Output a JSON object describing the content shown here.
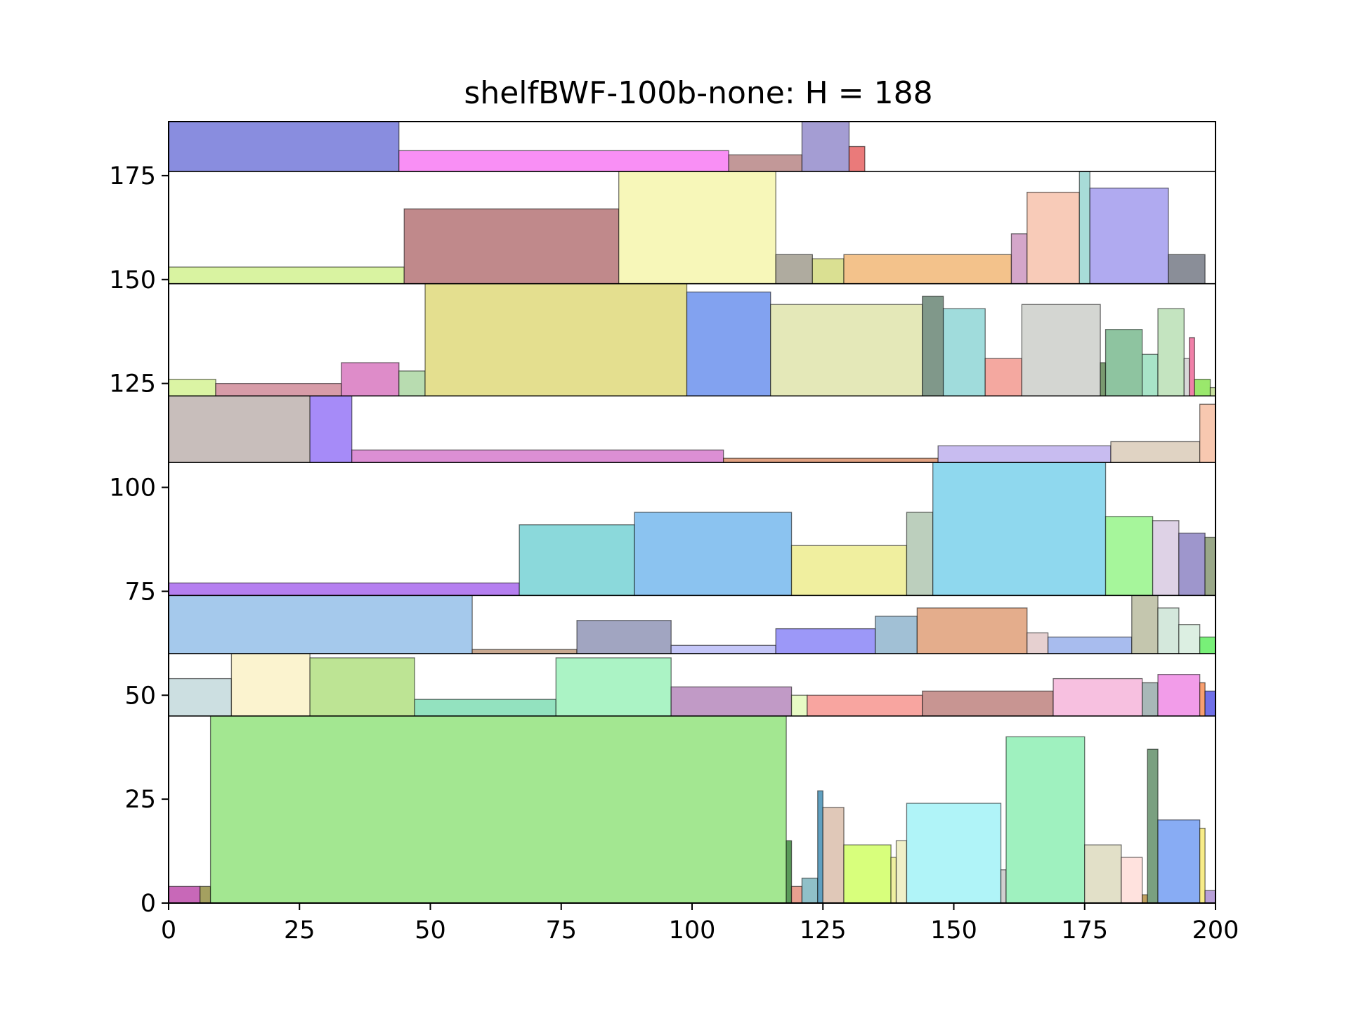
{
  "chart_data": {
    "type": "rectangle-packing",
    "title": "shelfBWF-100b-none: H = 188",
    "xlabel": "",
    "ylabel": "",
    "xlim": [
      0,
      200
    ],
    "ylim": [
      0,
      188
    ],
    "xticks": [
      0,
      25,
      50,
      75,
      100,
      125,
      150,
      175,
      200
    ],
    "yticks": [
      0,
      25,
      50,
      75,
      100,
      125,
      150,
      175
    ],
    "grid": false,
    "shelf_lines_y": [
      45,
      60,
      74,
      106,
      122,
      149,
      176
    ],
    "rectangles": [
      {
        "x": 0,
        "y": 0,
        "w": 6,
        "h": 4,
        "color": "#c868b8"
      },
      {
        "x": 6,
        "y": 0,
        "w": 2,
        "h": 4,
        "color": "#a4a060"
      },
      {
        "x": 8,
        "y": 0,
        "w": 110,
        "h": 45,
        "color": "#a3e791"
      },
      {
        "x": 118,
        "y": 0,
        "w": 1,
        "h": 15,
        "color": "#5a9a5a"
      },
      {
        "x": 119,
        "y": 0,
        "w": 2,
        "h": 4,
        "color": "#e8a090"
      },
      {
        "x": 121,
        "y": 0,
        "w": 3,
        "h": 6,
        "color": "#90c0c8"
      },
      {
        "x": 124,
        "y": 0,
        "w": 1,
        "h": 27,
        "color": "#60a0c0"
      },
      {
        "x": 125,
        "y": 0,
        "w": 4,
        "h": 23,
        "color": "#e0c8b8"
      },
      {
        "x": 129,
        "y": 0,
        "w": 9,
        "h": 14,
        "color": "#d8ff7c"
      },
      {
        "x": 138,
        "y": 0,
        "w": 1,
        "h": 11,
        "color": "#f0f0a0"
      },
      {
        "x": 139,
        "y": 0,
        "w": 2,
        "h": 15,
        "color": "#f0f0c8"
      },
      {
        "x": 141,
        "y": 0,
        "w": 18,
        "h": 24,
        "color": "#b0f4f8"
      },
      {
        "x": 159,
        "y": 0,
        "w": 1,
        "h": 8,
        "color": "#d0d0d0"
      },
      {
        "x": 160,
        "y": 0,
        "w": 15,
        "h": 40,
        "color": "#9ff1bf"
      },
      {
        "x": 175,
        "y": 0,
        "w": 7,
        "h": 14,
        "color": "#e2e0c8"
      },
      {
        "x": 182,
        "y": 0,
        "w": 4,
        "h": 11,
        "color": "#ffe2de"
      },
      {
        "x": 186,
        "y": 0,
        "w": 1,
        "h": 2,
        "color": "#c0a060"
      },
      {
        "x": 187,
        "y": 0,
        "w": 2,
        "h": 37,
        "color": "#7aa080"
      },
      {
        "x": 189,
        "y": 0,
        "w": 8,
        "h": 20,
        "color": "#88acf4"
      },
      {
        "x": 197,
        "y": 0,
        "w": 1,
        "h": 18,
        "color": "#f8ec88"
      },
      {
        "x": 198,
        "y": 0,
        "w": 2,
        "h": 3,
        "color": "#b8a0d8"
      },
      {
        "x": 0,
        "y": 45,
        "w": 12,
        "h": 9,
        "color": "#ccdfe1"
      },
      {
        "x": 12,
        "y": 45,
        "w": 15,
        "h": 15,
        "color": "#fbf3cf"
      },
      {
        "x": 27,
        "y": 45,
        "w": 20,
        "h": 14,
        "color": "#bde494"
      },
      {
        "x": 47,
        "y": 45,
        "w": 27,
        "h": 4,
        "color": "#93e2bf"
      },
      {
        "x": 74,
        "y": 45,
        "w": 22,
        "h": 14,
        "color": "#abf3c5"
      },
      {
        "x": 96,
        "y": 45,
        "w": 23,
        "h": 7,
        "color": "#c19ac6"
      },
      {
        "x": 119,
        "y": 45,
        "w": 3,
        "h": 5,
        "color": "#e8fbc5"
      },
      {
        "x": 122,
        "y": 45,
        "w": 22,
        "h": 5,
        "color": "#f8a5a0"
      },
      {
        "x": 144,
        "y": 45,
        "w": 25,
        "h": 6,
        "color": "#c89592"
      },
      {
        "x": 169,
        "y": 45,
        "w": 17,
        "h": 9,
        "color": "#f7c0e0"
      },
      {
        "x": 186,
        "y": 45,
        "w": 3,
        "h": 8,
        "color": "#a8b8b8"
      },
      {
        "x": 189,
        "y": 45,
        "w": 8,
        "h": 10,
        "color": "#f29ce9"
      },
      {
        "x": 197,
        "y": 45,
        "w": 1,
        "h": 8,
        "color": "#f8a070"
      },
      {
        "x": 198,
        "y": 45,
        "w": 2,
        "h": 6,
        "color": "#7070e8"
      },
      {
        "x": 0,
        "y": 60,
        "w": 58,
        "h": 14,
        "color": "#a5c9ec"
      },
      {
        "x": 58,
        "y": 60,
        "w": 20,
        "h": 1,
        "color": "#c8a890"
      },
      {
        "x": 78,
        "y": 60,
        "w": 18,
        "h": 8,
        "color": "#a1a5c1"
      },
      {
        "x": 96,
        "y": 60,
        "w": 20,
        "h": 2,
        "color": "#c4c6f8"
      },
      {
        "x": 116,
        "y": 60,
        "w": 19,
        "h": 6,
        "color": "#9c98f8"
      },
      {
        "x": 135,
        "y": 60,
        "w": 8,
        "h": 9,
        "color": "#a1c0d5"
      },
      {
        "x": 143,
        "y": 60,
        "w": 21,
        "h": 11,
        "color": "#e4ad8c"
      },
      {
        "x": 164,
        "y": 60,
        "w": 4,
        "h": 5,
        "color": "#e6d0d0"
      },
      {
        "x": 168,
        "y": 60,
        "w": 16,
        "h": 4,
        "color": "#a8bcee"
      },
      {
        "x": 184,
        "y": 60,
        "w": 5,
        "h": 14,
        "color": "#c4c6ae"
      },
      {
        "x": 189,
        "y": 60,
        "w": 4,
        "h": 11,
        "color": "#d4e8dc"
      },
      {
        "x": 193,
        "y": 60,
        "w": 4,
        "h": 7,
        "color": "#dcefe2"
      },
      {
        "x": 197,
        "y": 60,
        "w": 3,
        "h": 4,
        "color": "#78f078"
      },
      {
        "x": 0,
        "y": 74,
        "w": 67,
        "h": 3,
        "color": "#b57ff0"
      },
      {
        "x": 67,
        "y": 74,
        "w": 22,
        "h": 17,
        "color": "#8bd9db"
      },
      {
        "x": 89,
        "y": 74,
        "w": 30,
        "h": 20,
        "color": "#8bc3f0"
      },
      {
        "x": 119,
        "y": 74,
        "w": 22,
        "h": 12,
        "color": "#f0ef9f"
      },
      {
        "x": 141,
        "y": 74,
        "w": 5,
        "h": 20,
        "color": "#bccfbd"
      },
      {
        "x": 146,
        "y": 74,
        "w": 33,
        "h": 32,
        "color": "#8fd8ee"
      },
      {
        "x": 179,
        "y": 74,
        "w": 9,
        "h": 19,
        "color": "#a6f69b"
      },
      {
        "x": 188,
        "y": 74,
        "w": 5,
        "h": 18,
        "color": "#ded2e6"
      },
      {
        "x": 193,
        "y": 74,
        "w": 5,
        "h": 15,
        "color": "#9e96cc"
      },
      {
        "x": 198,
        "y": 74,
        "w": 2,
        "h": 14,
        "color": "#9aa888"
      },
      {
        "x": 0,
        "y": 106,
        "w": 27,
        "h": 16,
        "color": "#c8bebb"
      },
      {
        "x": 27,
        "y": 106,
        "w": 8,
        "h": 16,
        "color": "#a68bf8"
      },
      {
        "x": 35,
        "y": 106,
        "w": 71,
        "h": 3,
        "color": "#dc8fd4"
      },
      {
        "x": 106,
        "y": 106,
        "w": 41,
        "h": 1,
        "color": "#e0a080"
      },
      {
        "x": 147,
        "y": 106,
        "w": 33,
        "h": 4,
        "color": "#c8bcf0"
      },
      {
        "x": 180,
        "y": 106,
        "w": 17,
        "h": 5,
        "color": "#e0d3c3"
      },
      {
        "x": 197,
        "y": 106,
        "w": 3,
        "h": 14,
        "color": "#f8c8b0"
      },
      {
        "x": 0,
        "y": 122,
        "w": 9,
        "h": 4,
        "color": "#dbf4a4"
      },
      {
        "x": 9,
        "y": 122,
        "w": 24,
        "h": 3,
        "color": "#d79ca8"
      },
      {
        "x": 33,
        "y": 122,
        "w": 11,
        "h": 8,
        "color": "#de8cc9"
      },
      {
        "x": 44,
        "y": 122,
        "w": 5,
        "h": 6,
        "color": "#b8dcb0"
      },
      {
        "x": 49,
        "y": 122,
        "w": 50,
        "h": 27,
        "color": "#e4df8f"
      },
      {
        "x": 99,
        "y": 122,
        "w": 16,
        "h": 25,
        "color": "#82a2f0"
      },
      {
        "x": 115,
        "y": 122,
        "w": 29,
        "h": 22,
        "color": "#e4e8b8"
      },
      {
        "x": 144,
        "y": 122,
        "w": 4,
        "h": 24,
        "color": "#80988a"
      },
      {
        "x": 148,
        "y": 122,
        "w": 8,
        "h": 21,
        "color": "#a0dcdc"
      },
      {
        "x": 156,
        "y": 122,
        "w": 7,
        "h": 9,
        "color": "#f4a8a0"
      },
      {
        "x": 163,
        "y": 122,
        "w": 15,
        "h": 22,
        "color": "#d4d6d2"
      },
      {
        "x": 178,
        "y": 122,
        "w": 1,
        "h": 8,
        "color": "#7a9a70"
      },
      {
        "x": 179,
        "y": 122,
        "w": 7,
        "h": 16,
        "color": "#8ec4a0"
      },
      {
        "x": 186,
        "y": 122,
        "w": 3,
        "h": 10,
        "color": "#a8e4c8"
      },
      {
        "x": 189,
        "y": 122,
        "w": 5,
        "h": 21,
        "color": "#c4e4c0"
      },
      {
        "x": 194,
        "y": 122,
        "w": 1,
        "h": 9,
        "color": "#d8d8d8"
      },
      {
        "x": 195,
        "y": 122,
        "w": 1,
        "h": 14,
        "color": "#f080a8"
      },
      {
        "x": 196,
        "y": 122,
        "w": 3,
        "h": 4,
        "color": "#9ae86c"
      },
      {
        "x": 199,
        "y": 122,
        "w": 1,
        "h": 2,
        "color": "#c8e0a0"
      },
      {
        "x": 0,
        "y": 149,
        "w": 45,
        "h": 4,
        "color": "#d9f3a1"
      },
      {
        "x": 45,
        "y": 149,
        "w": 41,
        "h": 18,
        "color": "#c0898b"
      },
      {
        "x": 86,
        "y": 149,
        "w": 30,
        "h": 27,
        "color": "#f7f7b9"
      },
      {
        "x": 116,
        "y": 149,
        "w": 7,
        "h": 7,
        "color": "#afab9f"
      },
      {
        "x": 123,
        "y": 149,
        "w": 6,
        "h": 6,
        "color": "#dae092"
      },
      {
        "x": 129,
        "y": 149,
        "w": 32,
        "h": 7,
        "color": "#f3c28b"
      },
      {
        "x": 161,
        "y": 149,
        "w": 3,
        "h": 12,
        "color": "#d4a6ca"
      },
      {
        "x": 164,
        "y": 149,
        "w": 10,
        "h": 22,
        "color": "#f8cbb8"
      },
      {
        "x": 174,
        "y": 149,
        "w": 2,
        "h": 27,
        "color": "#a8dcd8"
      },
      {
        "x": 176,
        "y": 149,
        "w": 15,
        "h": 23,
        "color": "#b0aaf0"
      },
      {
        "x": 191,
        "y": 149,
        "w": 7,
        "h": 7,
        "color": "#8a8e98"
      },
      {
        "x": 0,
        "y": 176,
        "w": 44,
        "h": 12,
        "color": "#898ddf"
      },
      {
        "x": 44,
        "y": 176,
        "w": 63,
        "h": 5,
        "color": "#f98ff5"
      },
      {
        "x": 107,
        "y": 176,
        "w": 14,
        "h": 4,
        "color": "#c29898"
      },
      {
        "x": 121,
        "y": 176,
        "w": 9,
        "h": 12,
        "color": "#a49dd3"
      },
      {
        "x": 130,
        "y": 176,
        "w": 3,
        "h": 6,
        "color": "#ea7a7a"
      }
    ]
  }
}
